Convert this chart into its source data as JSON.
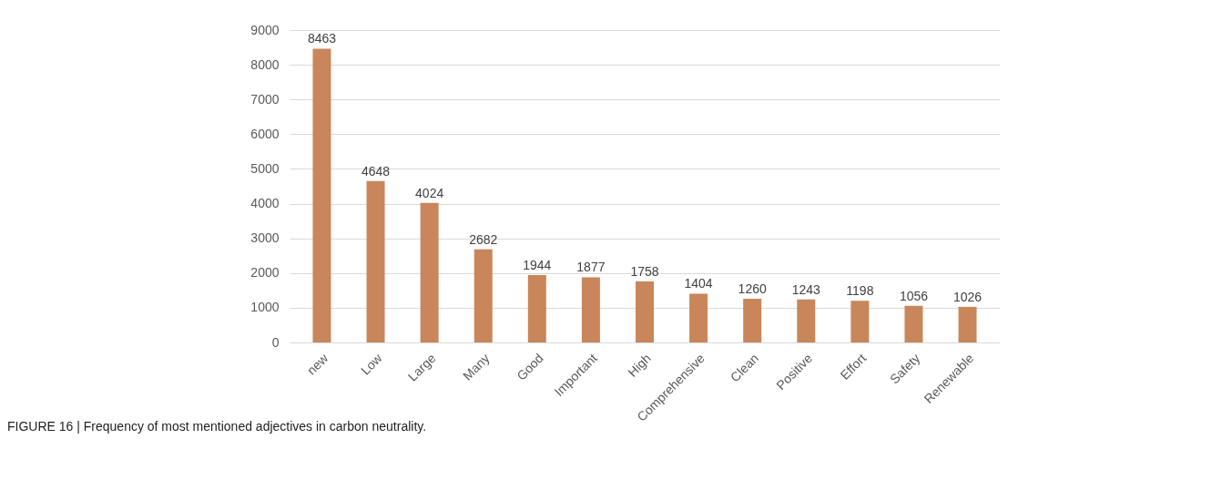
{
  "chart_data": {
    "type": "bar",
    "categories": [
      "new",
      "Low",
      "Large",
      "Many",
      "Good",
      "Important",
      "High",
      "Comprehensive",
      "Clean",
      "Positive",
      "Effort",
      "Safety",
      "Renewable"
    ],
    "values": [
      8463,
      4648,
      4024,
      2682,
      1944,
      1877,
      1758,
      1404,
      1260,
      1243,
      1198,
      1056,
      1026
    ],
    "color": "#c8865a",
    "ylim": [
      0,
      9000
    ],
    "yticks": [
      0,
      1000,
      2000,
      3000,
      4000,
      5000,
      6000,
      7000,
      8000,
      9000
    ],
    "grid": "y",
    "data_labels": true,
    "annotations": [
      "FIGURE 16 | Frequency of most mentioned adjectives in carbon neutrality."
    ]
  }
}
